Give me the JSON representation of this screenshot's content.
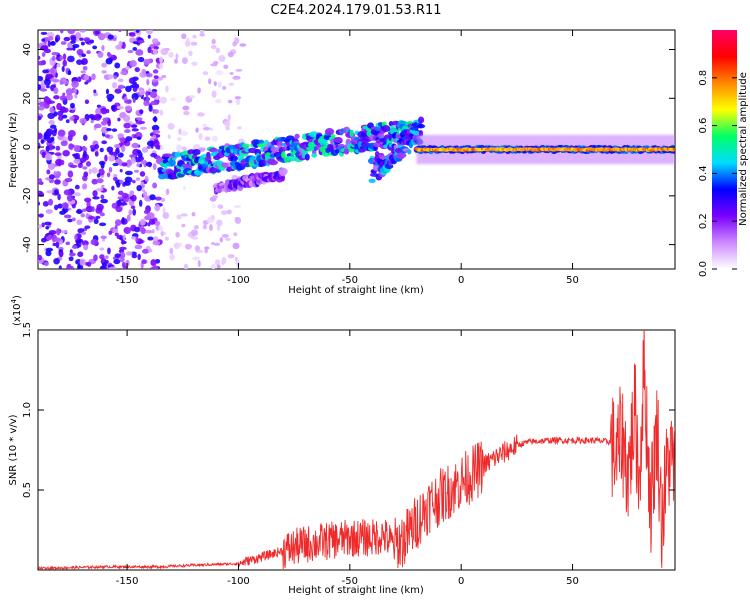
{
  "title": "C2E4.2024.179.01.53.R11",
  "chart_data": [
    {
      "type": "heatmap",
      "xlabel": "Height of straight line (km)",
      "ylabel": "Frequency (Hz)",
      "xlim": [
        -190,
        96
      ],
      "ylim": [
        -50,
        48
      ],
      "xticks": [
        -150,
        -100,
        -50,
        0,
        50
      ],
      "yticks": [
        -40,
        -20,
        0,
        20,
        40
      ],
      "grid": false,
      "colorbar": {
        "label": "Normalized spectral amplitude",
        "range": [
          0.0,
          1.0
        ],
        "ticks": [
          "0.0",
          "0.2",
          "0.4",
          "0.6",
          "0.8"
        ],
        "colors": [
          "#ffffff",
          "#cc88ff",
          "#7a00ff",
          "#0000ff",
          "#00ddff",
          "#00ff66",
          "#ffff00",
          "#ff8800",
          "#ff0000",
          "#ff0066"
        ]
      },
      "features": [
        {
          "x_range": [
            -190,
            -135
          ],
          "y_range": [
            -50,
            48
          ],
          "kind": "scatter",
          "amplitude": 0.25
        },
        {
          "x_range": [
            -135,
            -98
          ],
          "y_range": [
            -50,
            48
          ],
          "kind": "scatter",
          "amplitude": 0.08
        },
        {
          "x_range": [
            -135,
            -20
          ],
          "y_range": [
            -12,
            10
          ],
          "kind": "rising band",
          "amplitude": 0.35
        },
        {
          "x_range": [
            -110,
            -80
          ],
          "y_range": [
            -18,
            -10
          ],
          "kind": "lower branch",
          "amplitude": 0.2
        },
        {
          "x_range": [
            -40,
            -18
          ],
          "y_range": [
            -13,
            10
          ],
          "kind": "rising band",
          "amplitude": 0.3
        },
        {
          "x_range": [
            -20,
            96
          ],
          "y_range": [
            -4,
            2
          ],
          "kind": "flat line",
          "amplitude": 0.8
        }
      ]
    },
    {
      "type": "line",
      "xlabel": "Height of straight line (km)",
      "ylabel": "SNR (10 * v/v)",
      "multiplier": "(x10",
      "multiplier_exp": "4",
      "multiplier_close": ")",
      "xlim": [
        -190,
        96
      ],
      "ylim": [
        0,
        1.5
      ],
      "xticks": [
        -150,
        -100,
        -50,
        0,
        50
      ],
      "yticks": [
        "0.5",
        "1.0",
        "1.5"
      ],
      "color": "#ee2a2a",
      "series": [
        {
          "x": [
            -190,
            -160,
            -135,
            -120,
            -100,
            -90,
            -80,
            -70,
            -60,
            -50,
            -40,
            -35,
            -30,
            -25,
            -20,
            -15,
            -10,
            -5,
            0,
            5,
            10,
            15,
            20,
            25,
            30,
            40,
            50,
            60,
            67,
            70,
            72,
            75,
            78,
            80,
            82,
            85,
            88,
            90,
            93,
            96
          ],
          "values": [
            0.01,
            0.02,
            0.02,
            0.03,
            0.04,
            0.08,
            0.12,
            0.16,
            0.18,
            0.2,
            0.2,
            0.22,
            0.15,
            0.2,
            0.3,
            0.4,
            0.45,
            0.5,
            0.55,
            0.6,
            0.65,
            0.7,
            0.74,
            0.78,
            0.8,
            0.81,
            0.81,
            0.81,
            0.8,
            0.7,
            0.85,
            0.6,
            1.0,
            0.55,
            1.3,
            0.4,
            0.9,
            0.3,
            0.7,
            0.65
          ]
        }
      ]
    }
  ]
}
